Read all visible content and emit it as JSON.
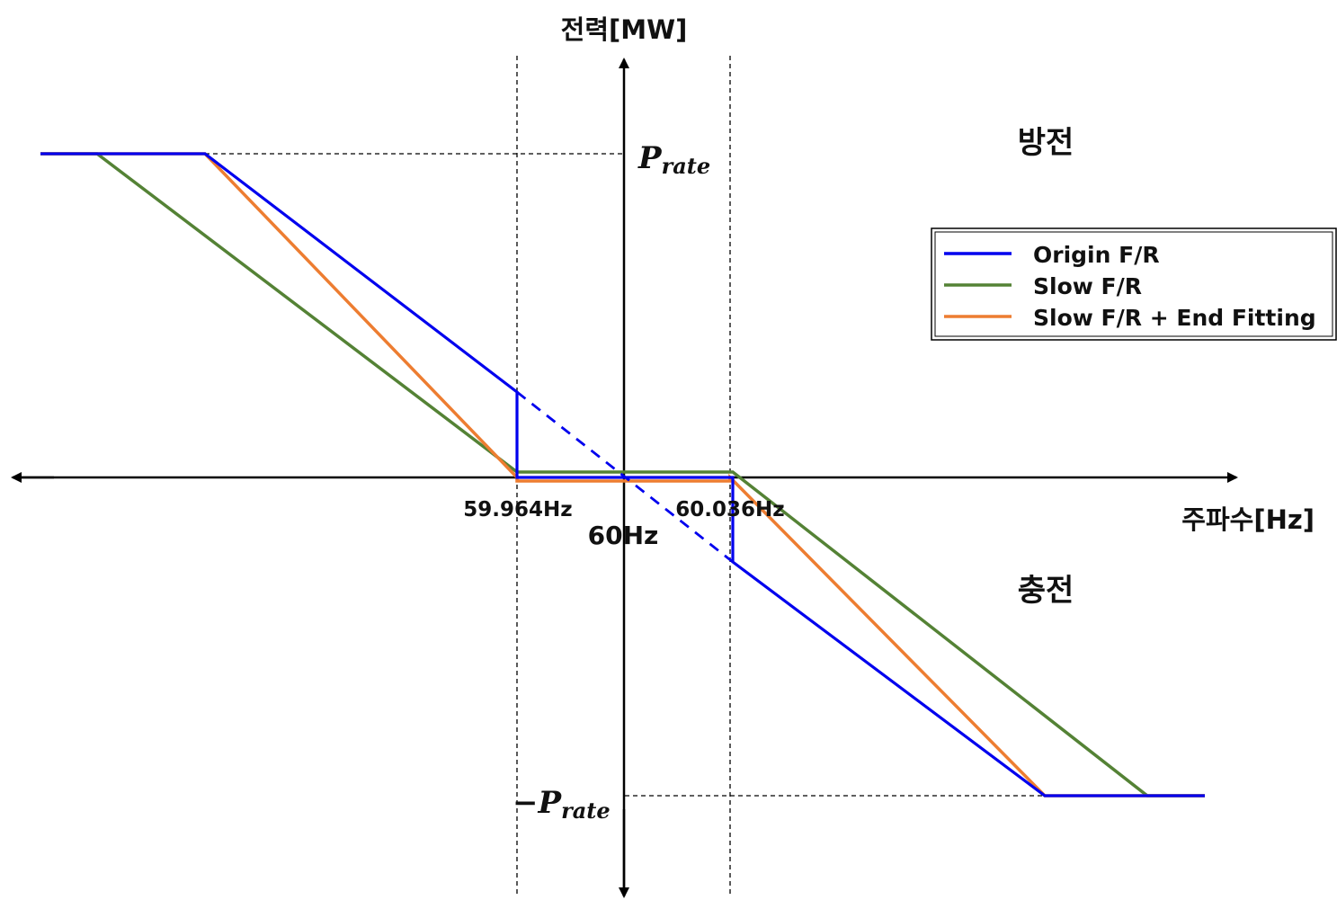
{
  "axes": {
    "y_label": "전력[MW]",
    "x_label": "주파수[Hz]"
  },
  "regions": {
    "discharge": "방전",
    "charge": "충전"
  },
  "markers": {
    "p_rate_symbol": "P",
    "p_rate_sub": "rate",
    "neg_p_rate_prefix": "−",
    "f_low": "59.964Hz",
    "f_high": "60.036Hz",
    "f_nominal": "60Hz"
  },
  "legend": {
    "items": [
      {
        "label": "Origin F/R",
        "color": "#0000ee"
      },
      {
        "label": "Slow F/R",
        "color": "#548235"
      },
      {
        "label": "Slow F/R + End Fitting",
        "color": "#ed7d31"
      }
    ]
  },
  "colors": {
    "origin": "#0000ee",
    "slow": "#548235",
    "fitting": "#ed7d31",
    "axis": "#000000"
  }
}
